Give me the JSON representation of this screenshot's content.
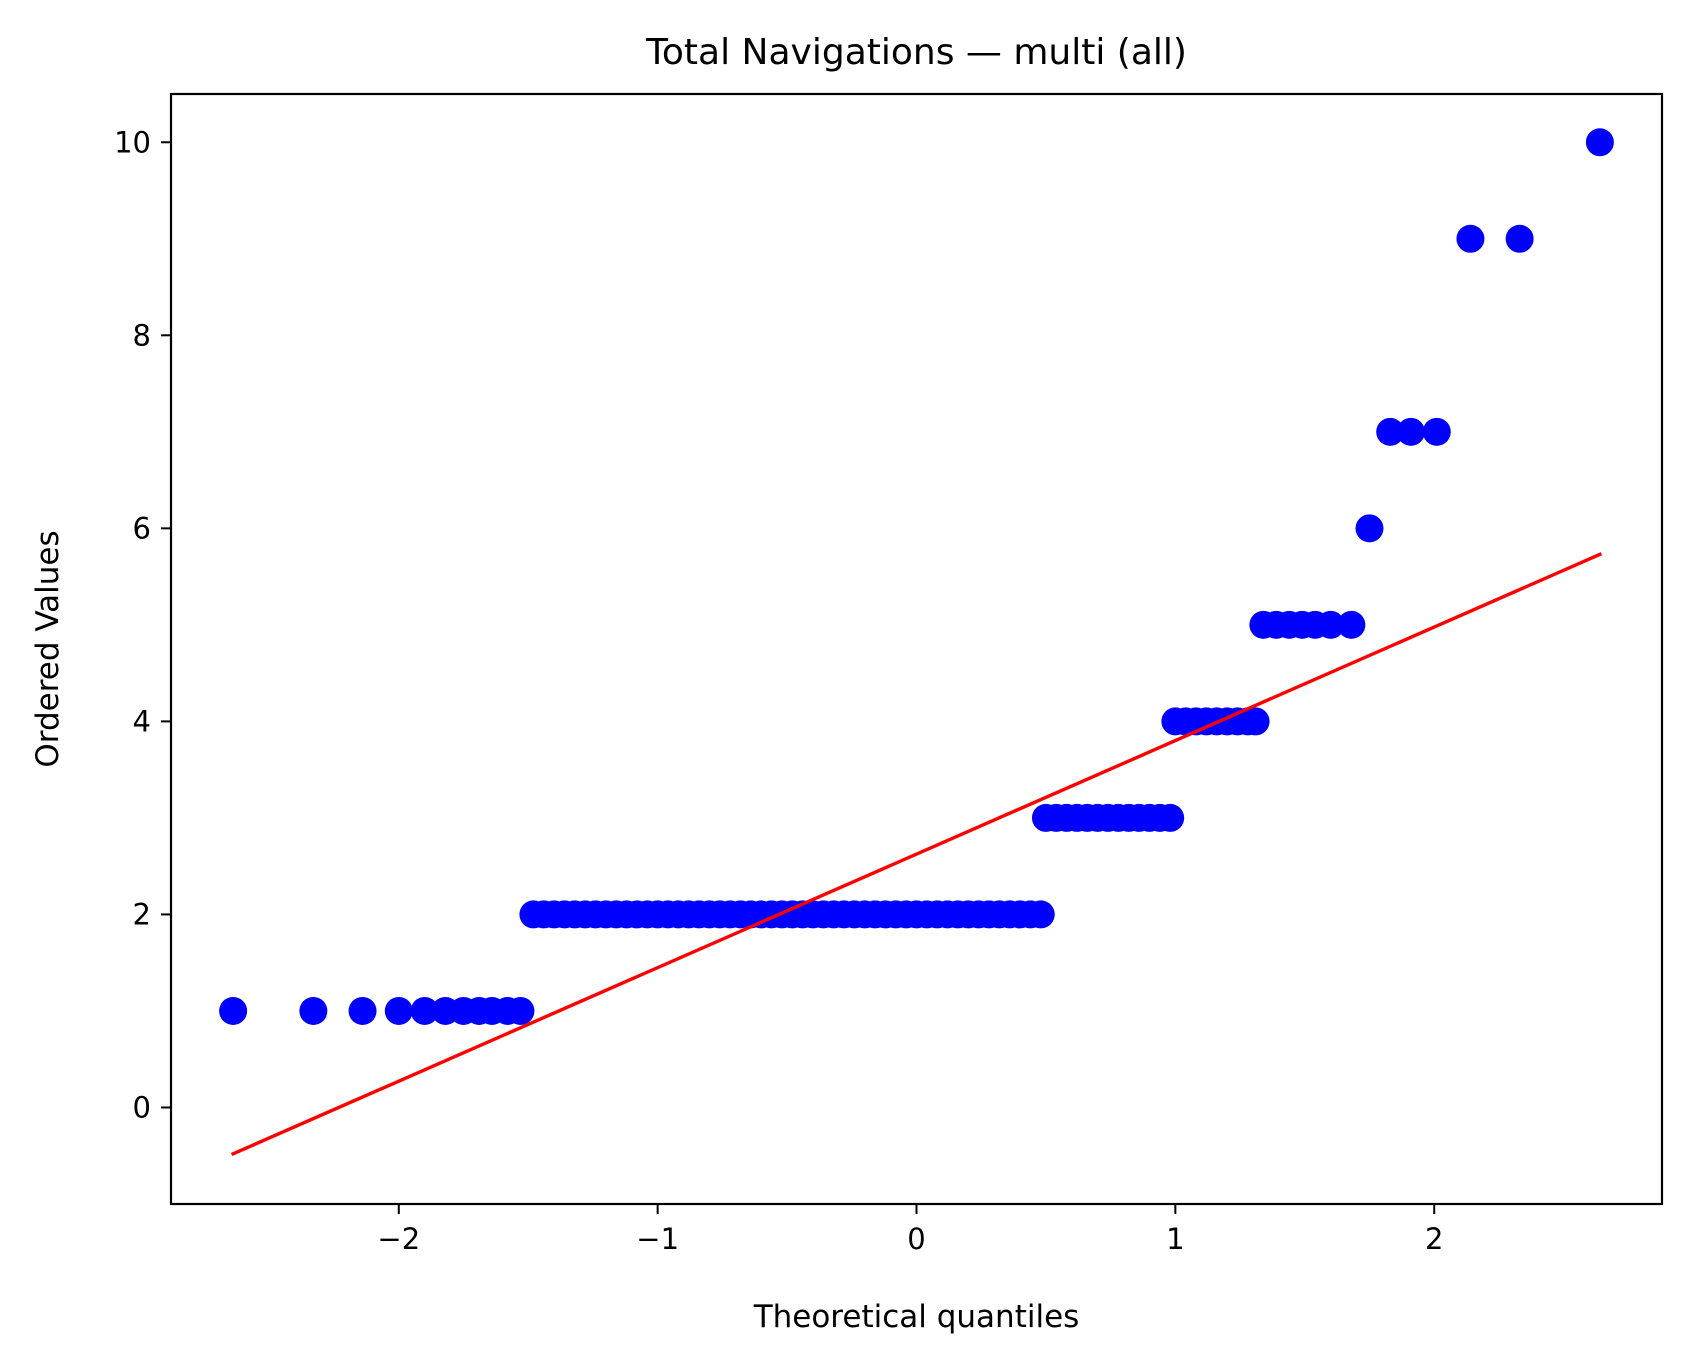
{
  "chart_data": {
    "type": "scatter",
    "title": "Total Navigations — multi (all)",
    "xlabel": "Theoretical quantiles",
    "ylabel": "Ordered Values",
    "xlim": [
      -2.88,
      2.88
    ],
    "ylim": [
      -1.0,
      10.5
    ],
    "xticks": [
      -2,
      -1,
      0,
      1,
      2
    ],
    "xtick_labels": [
      "−2",
      "−1",
      "0",
      "1",
      "2"
    ],
    "yticks": [
      0,
      2,
      4,
      6,
      8,
      10
    ],
    "ytick_labels": [
      "0",
      "2",
      "4",
      "6",
      "8",
      "10"
    ],
    "grid": false,
    "legend": "none",
    "colors": {
      "points": "#0000ff",
      "fit_line": "#ff0000"
    },
    "series": [
      {
        "kind": "points",
        "points": [
          [
            -2.64,
            1
          ],
          [
            -2.33,
            1
          ],
          [
            -2.14,
            1
          ],
          [
            -2.0,
            1
          ],
          [
            -1.9,
            1
          ],
          [
            -1.82,
            1
          ],
          [
            -1.75,
            1
          ],
          [
            -1.69,
            1
          ],
          [
            -1.64,
            1
          ],
          [
            -1.58,
            1
          ],
          [
            -1.53,
            1
          ],
          [
            -1.48,
            2
          ],
          [
            -1.44,
            2
          ],
          [
            -1.4,
            2
          ],
          [
            -1.36,
            2
          ],
          [
            -1.32,
            2
          ],
          [
            -1.28,
            2
          ],
          [
            -1.24,
            2
          ],
          [
            -1.2,
            2
          ],
          [
            -1.16,
            2
          ],
          [
            -1.12,
            2
          ],
          [
            -1.08,
            2
          ],
          [
            -1.04,
            2
          ],
          [
            -1.0,
            2
          ],
          [
            -0.96,
            2
          ],
          [
            -0.92,
            2
          ],
          [
            -0.88,
            2
          ],
          [
            -0.84,
            2
          ],
          [
            -0.8,
            2
          ],
          [
            -0.76,
            2
          ],
          [
            -0.72,
            2
          ],
          [
            -0.68,
            2
          ],
          [
            -0.64,
            2
          ],
          [
            -0.6,
            2
          ],
          [
            -0.56,
            2
          ],
          [
            -0.52,
            2
          ],
          [
            -0.48,
            2
          ],
          [
            -0.44,
            2
          ],
          [
            -0.4,
            2
          ],
          [
            -0.36,
            2
          ],
          [
            -0.32,
            2
          ],
          [
            -0.28,
            2
          ],
          [
            -0.24,
            2
          ],
          [
            -0.2,
            2
          ],
          [
            -0.16,
            2
          ],
          [
            -0.12,
            2
          ],
          [
            -0.08,
            2
          ],
          [
            -0.04,
            2
          ],
          [
            0.0,
            2
          ],
          [
            0.04,
            2
          ],
          [
            0.08,
            2
          ],
          [
            0.12,
            2
          ],
          [
            0.16,
            2
          ],
          [
            0.2,
            2
          ],
          [
            0.24,
            2
          ],
          [
            0.28,
            2
          ],
          [
            0.32,
            2
          ],
          [
            0.36,
            2
          ],
          [
            0.4,
            2
          ],
          [
            0.44,
            2
          ],
          [
            0.48,
            2
          ],
          [
            0.5,
            3
          ],
          [
            0.54,
            3
          ],
          [
            0.58,
            3
          ],
          [
            0.62,
            3
          ],
          [
            0.66,
            3
          ],
          [
            0.7,
            3
          ],
          [
            0.74,
            3
          ],
          [
            0.78,
            3
          ],
          [
            0.82,
            3
          ],
          [
            0.86,
            3
          ],
          [
            0.9,
            3
          ],
          [
            0.94,
            3
          ],
          [
            0.98,
            3
          ],
          [
            1.0,
            4
          ],
          [
            1.04,
            4
          ],
          [
            1.08,
            4
          ],
          [
            1.12,
            4
          ],
          [
            1.16,
            4
          ],
          [
            1.2,
            4
          ],
          [
            1.24,
            4
          ],
          [
            1.28,
            4
          ],
          [
            1.31,
            4
          ],
          [
            1.34,
            5
          ],
          [
            1.39,
            5
          ],
          [
            1.44,
            5
          ],
          [
            1.49,
            5
          ],
          [
            1.54,
            5
          ],
          [
            1.6,
            5
          ],
          [
            1.68,
            5
          ],
          [
            1.75,
            6
          ],
          [
            1.83,
            7
          ],
          [
            1.91,
            7
          ],
          [
            2.01,
            7
          ],
          [
            2.14,
            9
          ],
          [
            2.33,
            9
          ],
          [
            2.64,
            10
          ]
        ]
      },
      {
        "kind": "fit_line",
        "points": [
          [
            -2.64,
            -0.48
          ],
          [
            2.64,
            5.73
          ]
        ]
      }
    ]
  }
}
